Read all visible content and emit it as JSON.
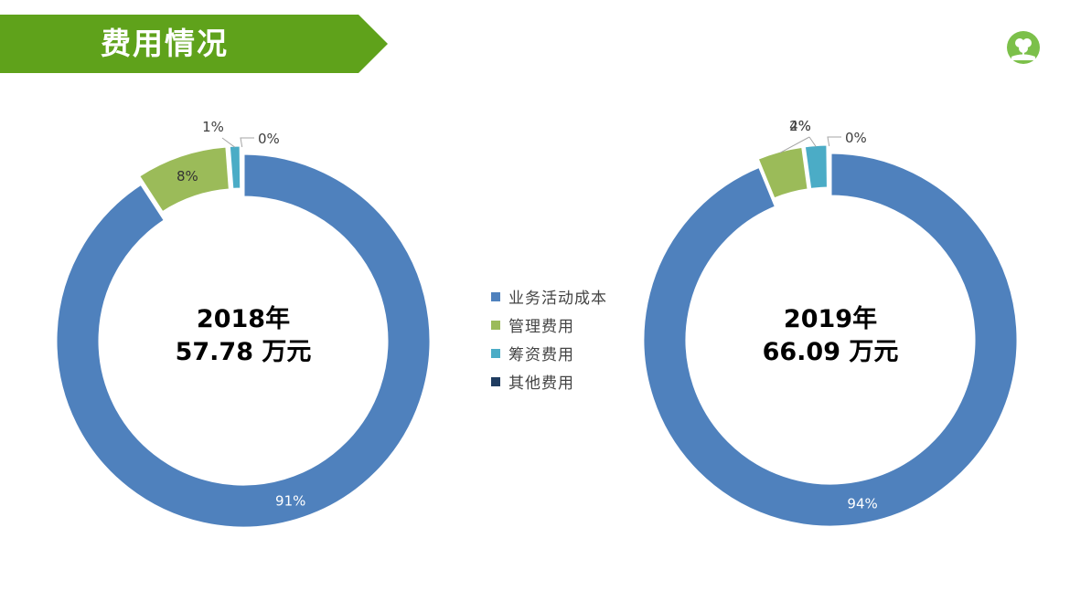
{
  "header": {
    "title": "费用情况"
  },
  "colors": {
    "banner": "#5fa21b",
    "series": [
      "#4f81bd",
      "#9bbb59",
      "#4bacc6",
      "#1f3c60"
    ]
  },
  "chart_data": [
    {
      "type": "pie",
      "variant": "donut",
      "categories": [
        "业务活动成本",
        "管理费用",
        "筹资费用",
        "其他费用"
      ],
      "values": [
        91,
        8,
        1,
        0
      ],
      "labels": [
        "91%",
        "8%",
        "1%",
        "0%"
      ],
      "center": {
        "year": "2018年",
        "amount": "57.78 万元"
      }
    },
    {
      "type": "pie",
      "variant": "donut",
      "categories": [
        "业务活动成本",
        "管理费用",
        "筹资费用",
        "其他费用"
      ],
      "values": [
        94,
        4,
        2,
        0
      ],
      "labels": [
        "94%",
        "4%",
        "2%",
        "0%"
      ],
      "center": {
        "year": "2019年",
        "amount": "66.09 万元"
      }
    }
  ],
  "legend": {
    "items": [
      {
        "label": "业务活动成本",
        "icon": "square"
      },
      {
        "label": "管理费用",
        "icon": "square"
      },
      {
        "label": "筹资费用",
        "icon": "square"
      },
      {
        "label": "其他费用",
        "icon": "square"
      }
    ]
  }
}
